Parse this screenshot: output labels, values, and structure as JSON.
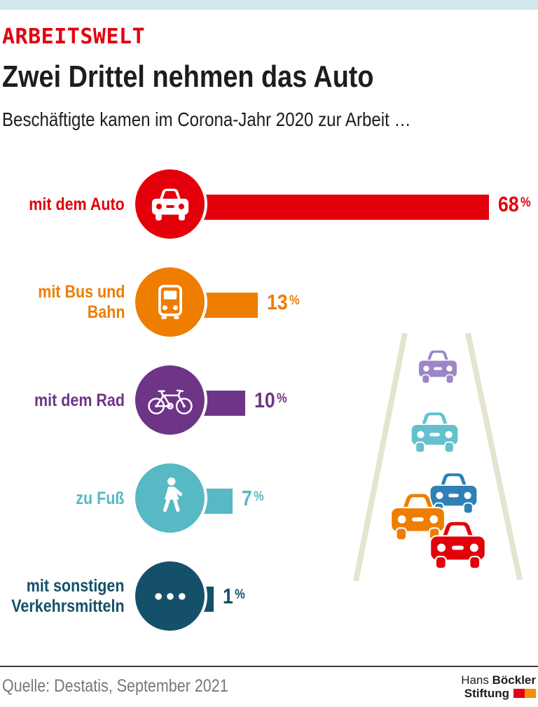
{
  "page": {
    "top_bar_color": "#d2e6ed"
  },
  "header": {
    "kicker": "ARBEITSWELT",
    "kicker_color": "#e3000f",
    "title": "Zwei Drittel nehmen das Auto",
    "subtitle": "Beschäftigte kamen im Corona-Jahr 2020 zur Arbeit …"
  },
  "chart_data": {
    "type": "bar",
    "orientation": "horizontal",
    "unit": "%",
    "xlim": [
      0,
      68
    ],
    "categories": [
      "mit dem Auto",
      "mit Bus und Bahn",
      "mit dem Rad",
      "zu Fuß",
      "mit sonstigen Verkehrsmitteln"
    ],
    "category_lines": [
      [
        "mit dem Auto"
      ],
      [
        "mit Bus und",
        "Bahn"
      ],
      [
        "mit dem Rad"
      ],
      [
        "zu Fuß"
      ],
      [
        "mit sonstigen",
        "Verkehrsmitteln"
      ]
    ],
    "values": [
      68,
      13,
      10,
      7,
      1
    ],
    "colors": [
      "#e3000b",
      "#ee7d00",
      "#6e3587",
      "#57b9c4",
      "#15506a"
    ],
    "icons": [
      "car-icon",
      "bus-icon",
      "bicycle-icon",
      "pedestrian-icon",
      "ellipsis-icon"
    ]
  },
  "illustration": {
    "name": "road-with-cars",
    "road_color": "#e6e3d0",
    "cars": [
      {
        "name": "car-purple",
        "color": "#9c86c6"
      },
      {
        "name": "car-teal",
        "color": "#64c0cd"
      },
      {
        "name": "car-blue",
        "color": "#2e80b5"
      },
      {
        "name": "car-orange",
        "color": "#ee7d00"
      },
      {
        "name": "car-red",
        "color": "#e3000b"
      }
    ]
  },
  "footer": {
    "source": "Quelle: Destatis, September 2021",
    "logo": {
      "name_regular": "Hans",
      "name_bold": "Böckler",
      "line2_bold": "Stiftung",
      "square_colors": [
        "#e2001a",
        "#f39200"
      ]
    }
  }
}
